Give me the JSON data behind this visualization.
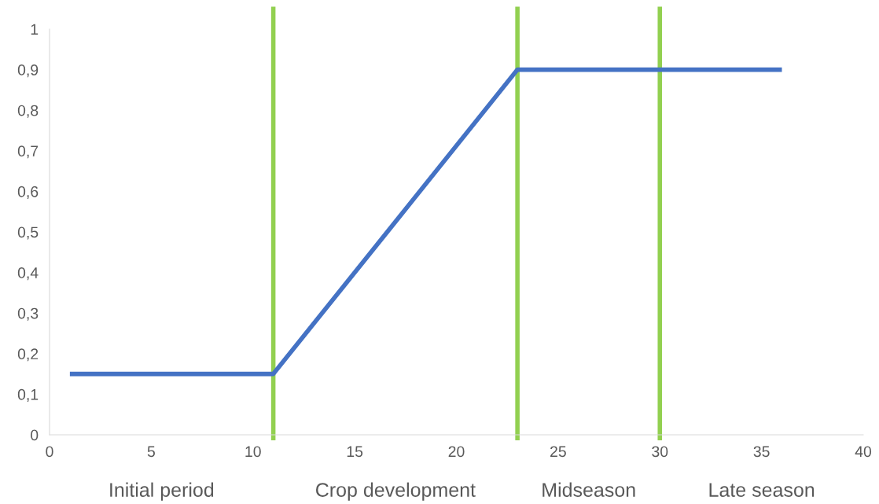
{
  "chart_data": {
    "type": "line",
    "x": [
      1,
      11,
      23,
      36
    ],
    "series": [
      {
        "color": "#4472c4",
        "values": [
          0.15,
          0.15,
          0.9,
          0.9
        ]
      }
    ],
    "xlim": [
      0,
      40
    ],
    "xticks": [
      0,
      5,
      10,
      15,
      20,
      25,
      30,
      35,
      40
    ],
    "ylim": [
      0,
      1
    ],
    "yticks": [
      0,
      {
        "value": 0.1,
        "label": "0,1"
      },
      {
        "value": 0.2,
        "label": "0,2"
      },
      {
        "value": 0.3,
        "label": "0,3"
      },
      {
        "value": 0.4,
        "label": "0,4"
      },
      {
        "value": 0.5,
        "label": "0,5"
      },
      {
        "value": 0.6,
        "label": "0,6"
      },
      {
        "value": 0.7,
        "label": "0,7"
      },
      {
        "value": 0.8,
        "label": "0,8"
      },
      {
        "value": 0.9,
        "label": "0,9"
      },
      1
    ],
    "ref_lines": [
      {
        "axis": "x",
        "value": 11,
        "color": "#92d050"
      },
      {
        "axis": "x",
        "value": 23,
        "color": "#92d050"
      },
      {
        "axis": "x",
        "value": 30,
        "color": "#92d050"
      }
    ],
    "annotations": [
      "Initial period",
      "Crop development",
      "Midseason",
      "Late season"
    ],
    "grid": false,
    "legend": false,
    "marker": "none",
    "line_style": "solid"
  }
}
